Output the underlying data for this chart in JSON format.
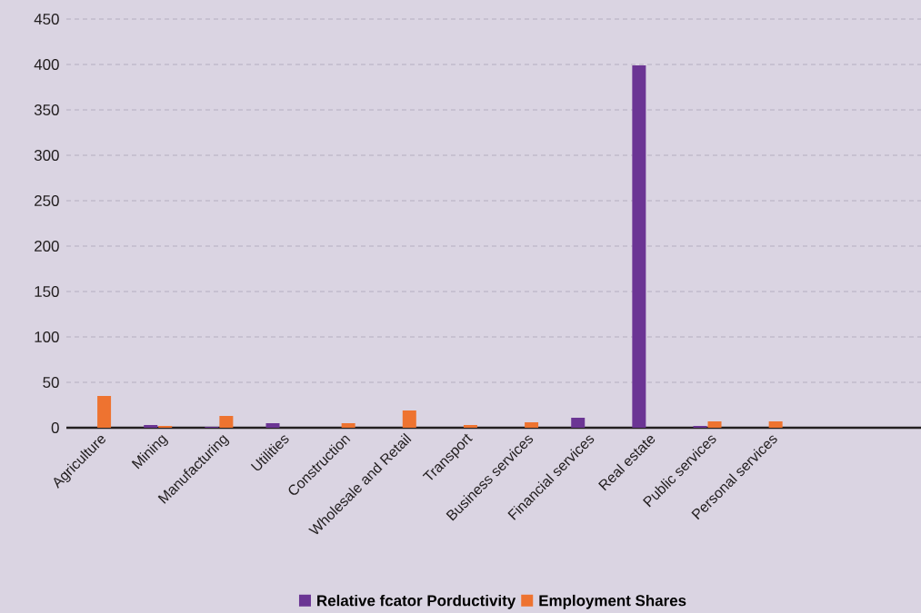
{
  "chart_data": {
    "type": "bar",
    "categories": [
      "Agriculture",
      "Mining",
      "Manufacturing",
      "Utilities",
      "Construction",
      "Wholesale and Retail",
      "Transport",
      "Business services",
      "Financial services",
      "Real estate",
      "Public services",
      "Personal services",
      null,
      null
    ],
    "series": [
      {
        "name": "Relative fcator Porductivity",
        "color": "#6b3594",
        "values": [
          0,
          3,
          1,
          5,
          0,
          0,
          0,
          0,
          11,
          399,
          2,
          0,
          null,
          null
        ]
      },
      {
        "name": "Employment Shares",
        "color": "#ee7330",
        "values": [
          35,
          2,
          13,
          0,
          5,
          19,
          3,
          6,
          0,
          0,
          7,
          7,
          null,
          null
        ]
      }
    ],
    "ylim": [
      0,
      450
    ],
    "yticks": [
      0,
      50,
      100,
      150,
      200,
      250,
      300,
      350,
      400,
      450
    ],
    "grid": "y",
    "legend": "bottom"
  }
}
